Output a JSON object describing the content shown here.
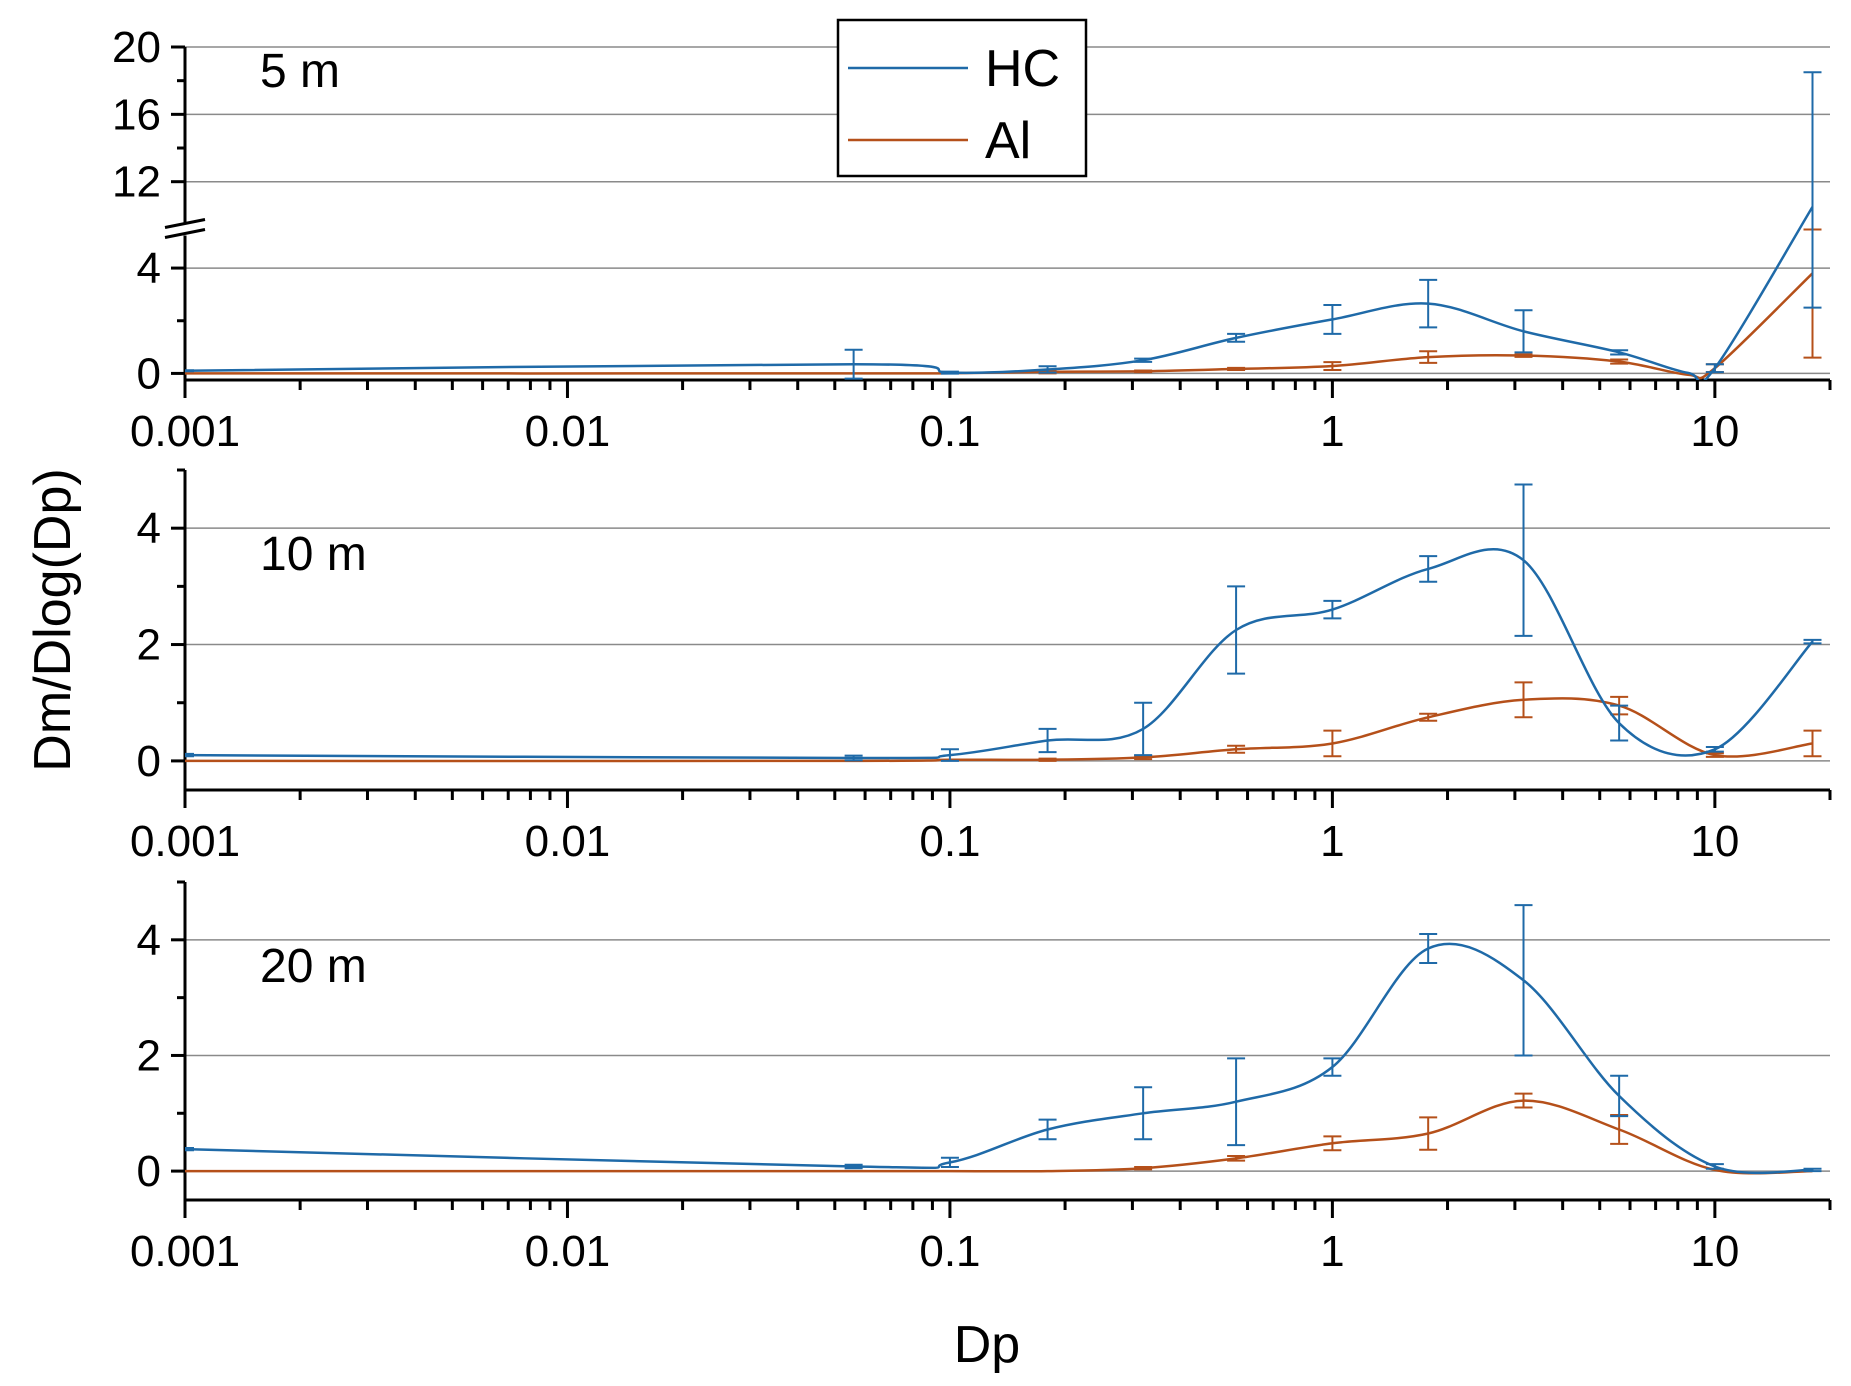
{
  "chart_data": [
    {
      "type": "line",
      "panel_label": "5 m",
      "xscale": "log",
      "xlim": [
        0.001,
        20
      ],
      "ylim": [
        -0.25,
        20
      ],
      "yaxis_break": {
        "from": 4.8,
        "to": 10.2
      },
      "xticks": [
        "0.001",
        "0.01",
        "0.1",
        "1",
        "10"
      ],
      "yticks": [
        "0",
        "4",
        "12",
        "16",
        "20"
      ],
      "grid": true,
      "series": [
        {
          "name": "HC",
          "color": "#1f6aa8",
          "points": [
            {
              "x": 0.001,
              "y": 0.1,
              "err": 0.02
            },
            {
              "x": 0.056,
              "y": 0.35,
              "err": 0.55
            },
            {
              "x": 0.1,
              "y": 0.03,
              "err": 0.04
            },
            {
              "x": 0.18,
              "y": 0.15,
              "err": 0.12
            },
            {
              "x": 0.32,
              "y": 0.5,
              "err": 0.06
            },
            {
              "x": 0.56,
              "y": 1.35,
              "err": 0.15
            },
            {
              "x": 1.0,
              "y": 2.05,
              "err": 0.55
            },
            {
              "x": 1.78,
              "y": 2.65,
              "err": 0.9
            },
            {
              "x": 3.16,
              "y": 1.6,
              "err": 0.8
            },
            {
              "x": 5.62,
              "y": 0.8,
              "err": 0.08
            },
            {
              "x": 8.5,
              "y": 0.02,
              "err": 0.0
            },
            {
              "x": 10.0,
              "y": 0.2,
              "err": 0.15
            },
            {
              "x": 18.0,
              "y": 10.5,
              "err": 8.0
            }
          ]
        },
        {
          "name": "Al",
          "color": "#b5501a",
          "points": [
            {
              "x": 0.001,
              "y": 0.0,
              "err": 0.0
            },
            {
              "x": 0.056,
              "y": 0.0,
              "err": 0.0
            },
            {
              "x": 0.1,
              "y": 0.01,
              "err": 0.0
            },
            {
              "x": 0.18,
              "y": 0.06,
              "err": 0.06
            },
            {
              "x": 0.32,
              "y": 0.08,
              "err": 0.03
            },
            {
              "x": 0.56,
              "y": 0.17,
              "err": 0.04
            },
            {
              "x": 1.0,
              "y": 0.28,
              "err": 0.15
            },
            {
              "x": 1.78,
              "y": 0.62,
              "err": 0.22
            },
            {
              "x": 3.16,
              "y": 0.68,
              "err": 0.05
            },
            {
              "x": 5.62,
              "y": 0.45,
              "err": 0.08
            },
            {
              "x": 8.5,
              "y": -0.05,
              "err": 0.0
            },
            {
              "x": 10.0,
              "y": 0.2,
              "err": 0.15
            },
            {
              "x": 18.0,
              "y": 3.8,
              "err": 3.2
            }
          ]
        }
      ],
      "legend": {
        "position": "top-center",
        "entries": [
          "HC",
          "Al"
        ]
      }
    },
    {
      "type": "line",
      "panel_label": "10 m",
      "xscale": "log",
      "xlim": [
        0.001,
        20
      ],
      "ylim": [
        -0.5,
        5
      ],
      "xticks": [
        "0.001",
        "0.01",
        "0.1",
        "1",
        "10"
      ],
      "yticks": [
        "0",
        "2",
        "4"
      ],
      "grid": true,
      "series": [
        {
          "name": "HC",
          "color": "#1f6aa8",
          "points": [
            {
              "x": 0.001,
              "y": 0.1,
              "err": 0.02
            },
            {
              "x": 0.056,
              "y": 0.05,
              "err": 0.04
            },
            {
              "x": 0.1,
              "y": 0.1,
              "err": 0.1
            },
            {
              "x": 0.18,
              "y": 0.35,
              "err": 0.2
            },
            {
              "x": 0.32,
              "y": 0.55,
              "err": 0.45
            },
            {
              "x": 0.56,
              "y": 2.25,
              "err": 0.75
            },
            {
              "x": 1.0,
              "y": 2.6,
              "err": 0.15
            },
            {
              "x": 1.78,
              "y": 3.3,
              "err": 0.22
            },
            {
              "x": 3.16,
              "y": 3.45,
              "err": 1.3
            },
            {
              "x": 5.62,
              "y": 0.65,
              "err": 0.3
            },
            {
              "x": 10.0,
              "y": 0.2,
              "err": 0.04
            },
            {
              "x": 18.0,
              "y": 2.05,
              "err": 0.03
            }
          ]
        },
        {
          "name": "Al",
          "color": "#b5501a",
          "points": [
            {
              "x": 0.001,
              "y": 0.0,
              "err": 0.0
            },
            {
              "x": 0.056,
              "y": 0.0,
              "err": 0.0
            },
            {
              "x": 0.1,
              "y": 0.02,
              "err": 0.0
            },
            {
              "x": 0.18,
              "y": 0.02,
              "err": 0.02
            },
            {
              "x": 0.32,
              "y": 0.06,
              "err": 0.03
            },
            {
              "x": 0.56,
              "y": 0.2,
              "err": 0.06
            },
            {
              "x": 1.0,
              "y": 0.3,
              "err": 0.22
            },
            {
              "x": 1.78,
              "y": 0.75,
              "err": 0.06
            },
            {
              "x": 3.16,
              "y": 1.05,
              "err": 0.3
            },
            {
              "x": 5.62,
              "y": 0.95,
              "err": 0.15
            },
            {
              "x": 10.0,
              "y": 0.1,
              "err": 0.03
            },
            {
              "x": 18.0,
              "y": 0.3,
              "err": 0.22
            }
          ]
        }
      ]
    },
    {
      "type": "line",
      "panel_label": "20 m",
      "xscale": "log",
      "xlim": [
        0.001,
        20
      ],
      "ylim": [
        -0.5,
        5
      ],
      "xticks": [
        "0.001",
        "0.01",
        "0.1",
        "1",
        "10"
      ],
      "yticks": [
        "0",
        "2",
        "4"
      ],
      "grid": true,
      "series": [
        {
          "name": "HC",
          "color": "#1f6aa8",
          "points": [
            {
              "x": 0.001,
              "y": 0.38,
              "err": 0.02
            },
            {
              "x": 0.056,
              "y": 0.08,
              "err": 0.03
            },
            {
              "x": 0.1,
              "y": 0.15,
              "err": 0.08
            },
            {
              "x": 0.18,
              "y": 0.72,
              "err": 0.17
            },
            {
              "x": 0.32,
              "y": 1.0,
              "err": 0.45
            },
            {
              "x": 0.56,
              "y": 1.2,
              "err": 0.75
            },
            {
              "x": 1.0,
              "y": 1.8,
              "err": 0.15
            },
            {
              "x": 1.78,
              "y": 3.85,
              "err": 0.25
            },
            {
              "x": 3.16,
              "y": 3.3,
              "err": 1.3
            },
            {
              "x": 5.62,
              "y": 1.3,
              "err": 0.35
            },
            {
              "x": 10.0,
              "y": 0.08,
              "err": 0.04
            },
            {
              "x": 18.0,
              "y": 0.02,
              "err": 0.02
            }
          ]
        },
        {
          "name": "Al",
          "color": "#b5501a",
          "points": [
            {
              "x": 0.001,
              "y": 0.0,
              "err": 0.0
            },
            {
              "x": 0.056,
              "y": 0.0,
              "err": 0.0
            },
            {
              "x": 0.1,
              "y": 0.0,
              "err": 0.0
            },
            {
              "x": 0.18,
              "y": 0.0,
              "err": 0.0
            },
            {
              "x": 0.32,
              "y": 0.05,
              "err": 0.02
            },
            {
              "x": 0.56,
              "y": 0.22,
              "err": 0.04
            },
            {
              "x": 1.0,
              "y": 0.48,
              "err": 0.12
            },
            {
              "x": 1.78,
              "y": 0.65,
              "err": 0.28
            },
            {
              "x": 3.16,
              "y": 1.22,
              "err": 0.12
            },
            {
              "x": 5.62,
              "y": 0.72,
              "err": 0.25
            },
            {
              "x": 10.0,
              "y": 0.02,
              "err": 0.0
            },
            {
              "x": 18.0,
              "y": 0.0,
              "err": 0.0
            }
          ]
        }
      ]
    }
  ],
  "axis_titles": {
    "x": "Dp",
    "y": "Dm/Dlog(Dp)"
  }
}
